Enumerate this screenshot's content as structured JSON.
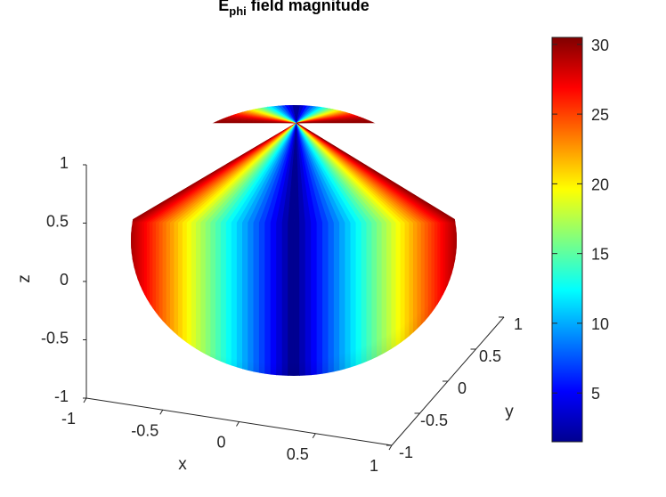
{
  "chart_data": {
    "type": "surface3d",
    "title_main": "E",
    "title_sub": "phi",
    "title_rest": " field magnitude",
    "xlabel": "x",
    "ylabel": "y",
    "zlabel": "z",
    "xlim": [
      -1,
      1
    ],
    "ylim": [
      -1,
      1
    ],
    "zlim": [
      -1,
      1
    ],
    "xticks": [
      "-1",
      "-0.5",
      "0",
      "0.5",
      "1"
    ],
    "yticks": [
      "-1",
      "-0.5",
      "0",
      "0.5",
      "1"
    ],
    "zticks": [
      "1",
      "0.5",
      "0",
      "-0.5",
      "-1"
    ],
    "colorbar": {
      "colormap": "jet",
      "range": [
        1.5,
        30.5
      ],
      "ticks": [
        "30",
        "25",
        "20",
        "15",
        "10",
        "5"
      ],
      "tick_values": [
        30,
        25,
        20,
        15,
        10,
        5
      ]
    },
    "surface": {
      "shape": "sphere",
      "radius": 1,
      "field": "|E_phi| ~ 30 * |sin(phi)|",
      "min_value": 1.5,
      "max_value": 30
    }
  }
}
